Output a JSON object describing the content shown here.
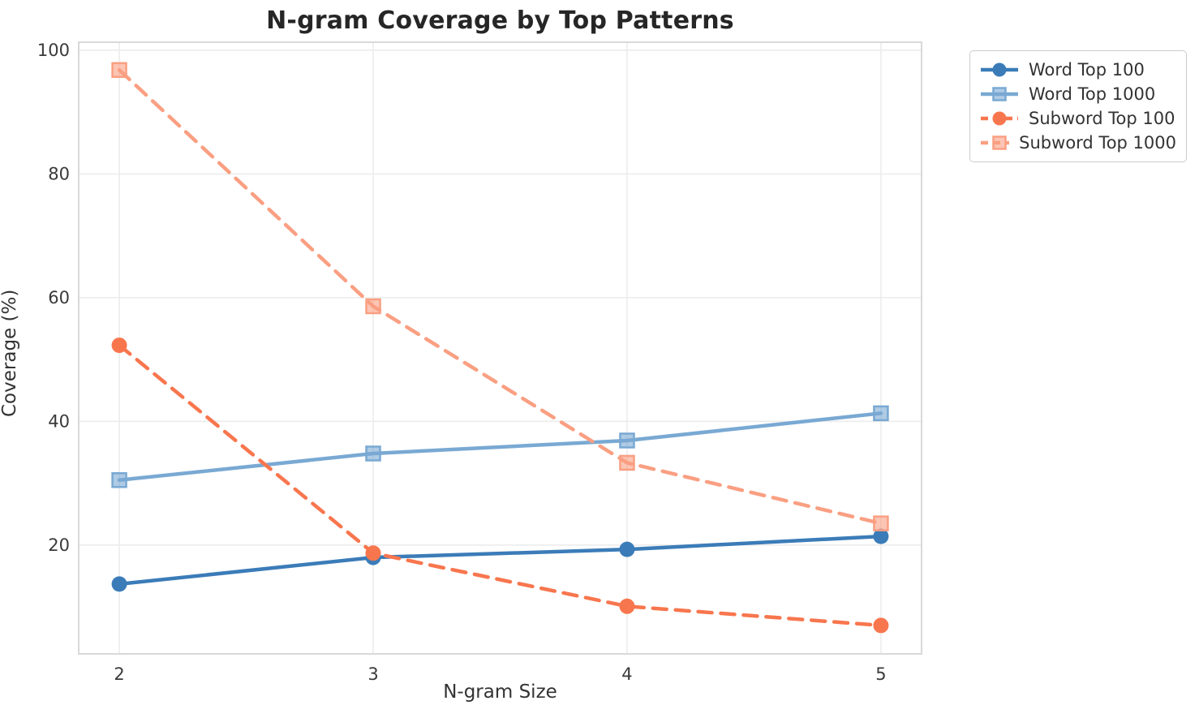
{
  "chart_data": {
    "type": "line",
    "title": "N-gram Coverage by Top Patterns",
    "xlabel": "N-gram Size",
    "ylabel": "Coverage (%)",
    "x": [
      2,
      3,
      4,
      5
    ],
    "xtick_labels": [
      "2",
      "3",
      "4",
      "5"
    ],
    "ytick_values": [
      20,
      40,
      60,
      80,
      100
    ],
    "ytick_labels": [
      "20",
      "40",
      "60",
      "80",
      "100"
    ],
    "xlim": [
      1.84,
      5.16
    ],
    "ylim": [
      2.4,
      101.3
    ],
    "grid": true,
    "legend_position": "outside-upper-right",
    "series": [
      {
        "name": "Word Top 100",
        "color": "#3B7CB8",
        "marker": "circle",
        "linestyle": "solid",
        "values": [
          13.7,
          18.0,
          19.3,
          21.4
        ]
      },
      {
        "name": "Word Top 1000",
        "color": "#79A9D3",
        "marker": "square",
        "linestyle": "solid",
        "values": [
          30.5,
          34.8,
          36.9,
          41.3
        ]
      },
      {
        "name": "Subword Top 100",
        "color": "#F8764E",
        "marker": "circle",
        "linestyle": "dashed",
        "values": [
          52.3,
          18.7,
          10.1,
          7.0
        ]
      },
      {
        "name": "Subword Top 1000",
        "color": "#FA9F82",
        "marker": "square",
        "linestyle": "dashed",
        "values": [
          96.8,
          58.6,
          33.3,
          23.5
        ]
      }
    ]
  },
  "colors": {
    "background": "#ffffff",
    "grid": "#ececec",
    "spine": "#d9d9d9",
    "tick_label": "#3a3a3a",
    "title": "#262626",
    "legend_border": "#cccccc",
    "legend_text": "#333333"
  }
}
